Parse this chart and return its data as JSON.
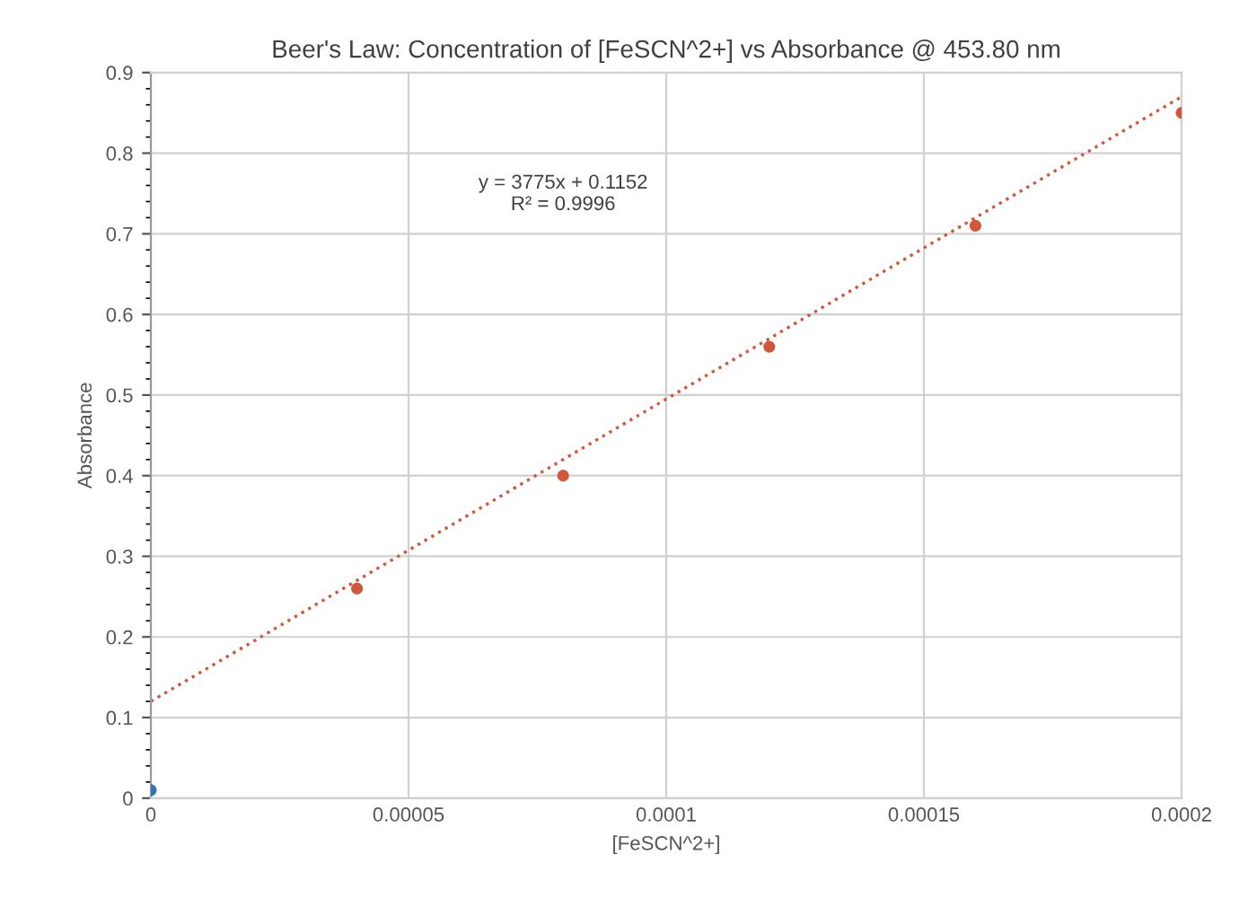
{
  "chart_data": {
    "type": "scatter",
    "title": "Beer's Law: Concentration of [FeSCN^2+] vs Absorbance @ 453.80 nm",
    "xlabel": "[FeSCN^2+]",
    "ylabel": "Absorbance",
    "series": [
      {
        "color": "#2e75b6",
        "marker": "circle",
        "x": [
          0
        ],
        "values": [
          0.01
        ]
      },
      {
        "color": "#d0583a",
        "marker": "circle",
        "x": [
          4e-05,
          8e-05,
          0.00012,
          0.00016,
          0.0002
        ],
        "values": [
          0.26,
          0.4,
          0.56,
          0.71,
          0.85
        ]
      },
      {
        "type": "line",
        "color": "#d0583a",
        "line_style": "dotted",
        "marker": "none",
        "x": [
          0,
          0.0002
        ],
        "values": [
          0.12,
          0.87
        ]
      }
    ],
    "annotations": [
      "y = 3775x + 0.1152\nR² = 0.9996"
    ],
    "xlim": [
      0,
      0.0002
    ],
    "ylim": [
      0,
      0.9
    ],
    "xticks": [
      0,
      {
        "value": 5e-05,
        "label": "0.00005"
      },
      0.0001,
      0.00015,
      0.0002
    ],
    "yticks": [
      0,
      0.1,
      0.2,
      0.3,
      0.4,
      0.5,
      0.6,
      0.7,
      0.8,
      0.9
    ],
    "grid": true
  }
}
